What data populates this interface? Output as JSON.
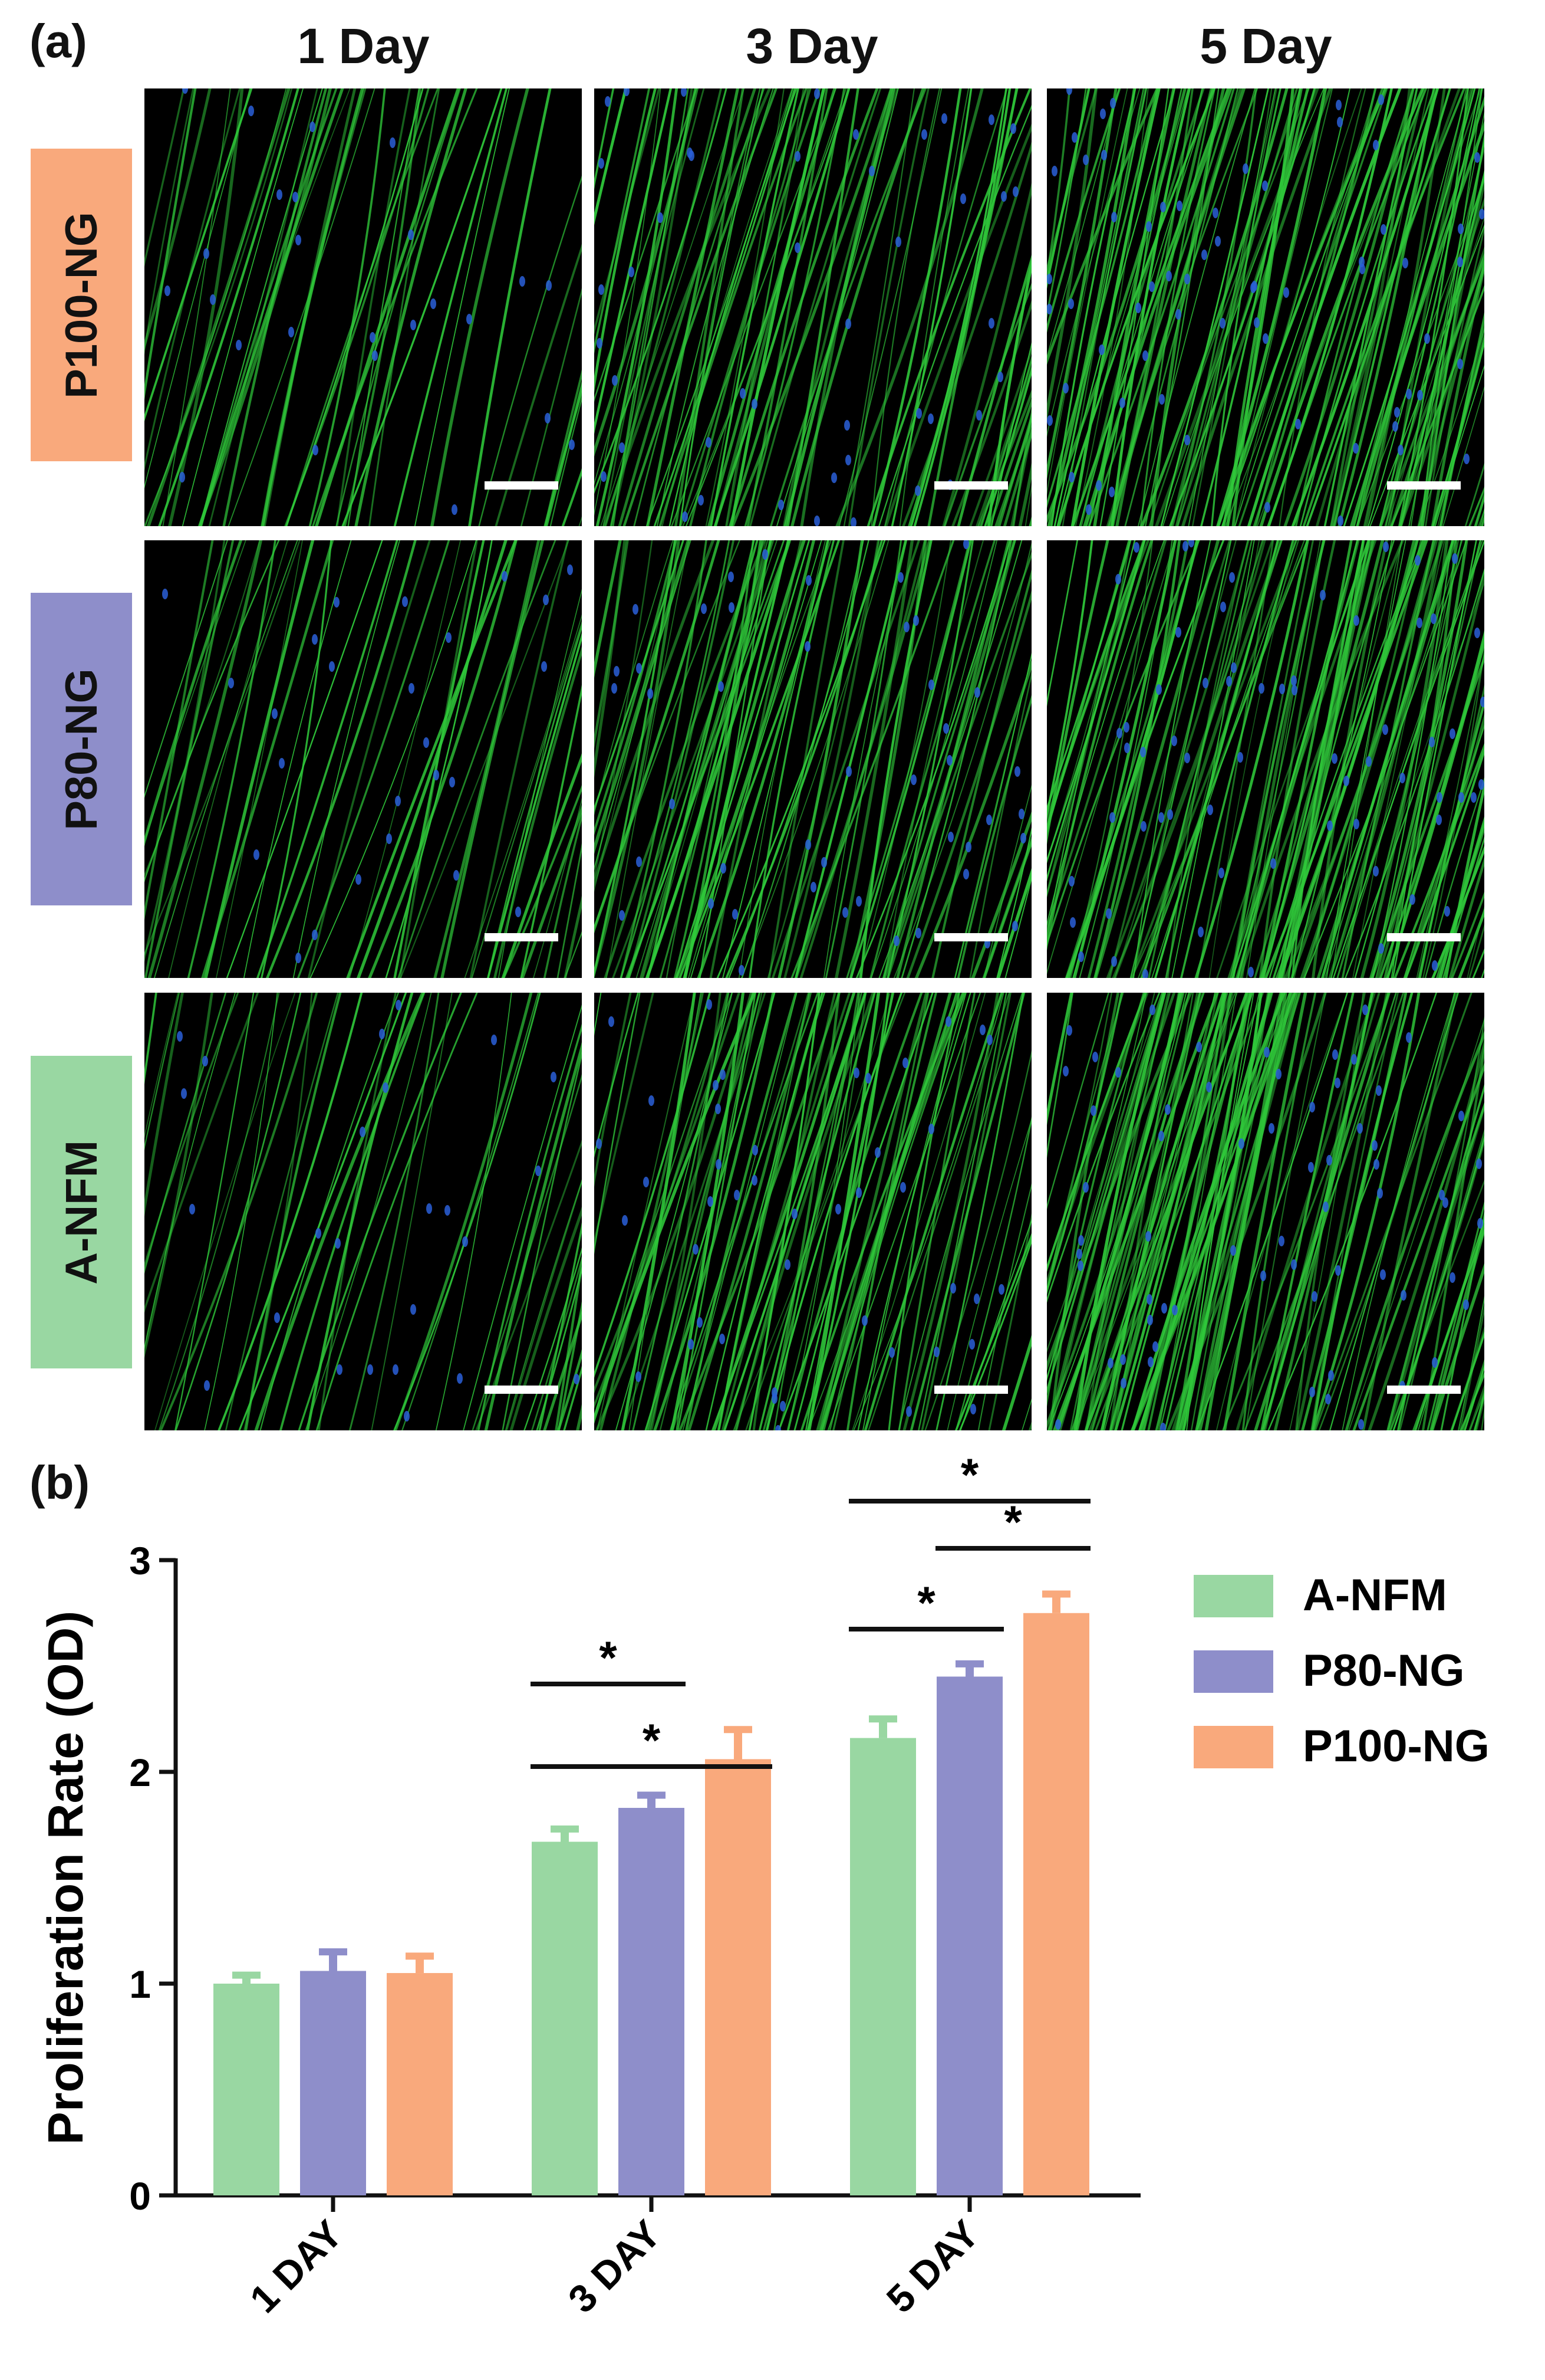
{
  "figure": {
    "panel_a_label": "(a)",
    "panel_b_label": "(b)",
    "columns": [
      "1 Day",
      "3 Day",
      "5 Day"
    ],
    "rows": [
      {
        "label": "P100-NG",
        "color": "#F9A97C"
      },
      {
        "label": "P80-NG",
        "color": "#8E8ECA"
      },
      {
        "label": "A-NFM",
        "color": "#99D7A2"
      }
    ],
    "image_colors": {
      "fibers": "#2fc83a",
      "nuclei": "#2a5fd8",
      "background": "#000000"
    }
  },
  "chart_data": {
    "type": "bar",
    "categories": [
      "1 DAY",
      "3 DAY",
      "5 DAY"
    ],
    "series": [
      {
        "name": "A-NFM",
        "color": "#99D7A2",
        "values": [
          1.0,
          1.67,
          2.16
        ],
        "errors": [
          0.04,
          0.06,
          0.09
        ]
      },
      {
        "name": "P80-NG",
        "color": "#8E8ECA",
        "values": [
          1.06,
          1.83,
          2.45
        ],
        "errors": [
          0.09,
          0.06,
          0.06
        ]
      },
      {
        "name": "P100-NG",
        "color": "#F9A97C",
        "values": [
          1.05,
          2.06,
          2.75
        ],
        "errors": [
          0.08,
          0.14,
          0.09
        ]
      }
    ],
    "ylabel": "Proliferation Rate (OD)",
    "xlabel": "",
    "ylim": [
      0,
      3
    ],
    "yticks": [
      0,
      1,
      2,
      3
    ],
    "legend_position": "right",
    "significance": [
      {
        "category": 1,
        "from": 0,
        "to": 1,
        "label": "*"
      },
      {
        "category": 1,
        "from": 0,
        "to": 2,
        "label": "*"
      },
      {
        "category": 2,
        "from": 0,
        "to": 1,
        "label": "*"
      },
      {
        "category": 2,
        "from": 1,
        "to": 2,
        "label": "*"
      },
      {
        "category": 2,
        "from": 0,
        "to": 2,
        "label": "*"
      }
    ]
  }
}
